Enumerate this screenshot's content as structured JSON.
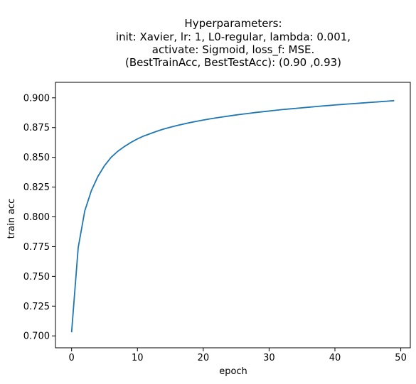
{
  "chart_data": {
    "type": "line",
    "title_lines": [
      "Hyperparameters:",
      "init: Xavier, lr: 1, L0-regular, lambda: 0.001,",
      "activate: Sigmoid, loss_f: MSE.",
      "(BestTrainAcc, BestTestAcc): (0.90 ,0.93)"
    ],
    "xlabel": "epoch",
    "ylabel": "train acc",
    "xlim": [
      -2.45,
      51.45
    ],
    "ylim": [
      0.69,
      0.913
    ],
    "xticks": [
      0,
      10,
      20,
      30,
      40,
      50
    ],
    "yticks": [
      0.7,
      0.725,
      0.75,
      0.775,
      0.8,
      0.825,
      0.85,
      0.875,
      0.9
    ],
    "ytick_labels": [
      "0.700",
      "0.725",
      "0.750",
      "0.775",
      "0.800",
      "0.825",
      "0.850",
      "0.875",
      "0.900"
    ],
    "xtick_labels": [
      "0",
      "10",
      "20",
      "30",
      "40",
      "50"
    ],
    "grid": false,
    "series": [
      {
        "color": "#1f77b4",
        "x": [
          0,
          1,
          2,
          3,
          4,
          5,
          6,
          7,
          8,
          9,
          10,
          11,
          12,
          13,
          14,
          15,
          16,
          17,
          18,
          19,
          20,
          21,
          22,
          23,
          24,
          25,
          26,
          27,
          28,
          29,
          30,
          31,
          32,
          33,
          34,
          35,
          36,
          37,
          38,
          39,
          40,
          41,
          42,
          43,
          44,
          45,
          46,
          47,
          48,
          49
        ],
        "y": [
          0.703,
          0.774,
          0.805,
          0.822,
          0.834,
          0.843,
          0.85,
          0.855,
          0.859,
          0.8625,
          0.8655,
          0.868,
          0.87,
          0.872,
          0.8738,
          0.8753,
          0.8767,
          0.878,
          0.8792,
          0.8803,
          0.8813,
          0.8823,
          0.8832,
          0.884,
          0.8848,
          0.8856,
          0.8863,
          0.887,
          0.8877,
          0.8883,
          0.8889,
          0.8895,
          0.8901,
          0.8906,
          0.8911,
          0.8916,
          0.8921,
          0.8926,
          0.8931,
          0.8935,
          0.894,
          0.8944,
          0.8948,
          0.8952,
          0.8956,
          0.896,
          0.8964,
          0.8968,
          0.8972,
          0.8976
        ]
      }
    ]
  }
}
